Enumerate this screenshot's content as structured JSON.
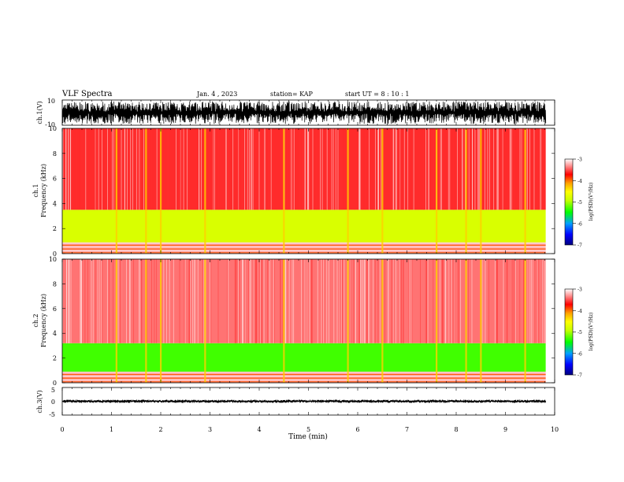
{
  "header": {
    "title": "VLF Spectra",
    "date": "Jan. 4 , 2023",
    "station": "station= KAP",
    "start": "start UT = 8 : 10 : 1"
  },
  "chart_data": [
    {
      "type": "line",
      "ylabel": "ch.1(V)",
      "ylim": [
        -10,
        10
      ],
      "yticks": [
        "10",
        "-10"
      ],
      "series": [
        {
          "envelope_min": -9,
          "envelope_max": 9
        }
      ]
    },
    {
      "type": "heatmap",
      "ylabel_top": "ch.1",
      "ylabel": "Frequency (kHz)",
      "ylim": [
        0,
        10
      ],
      "yticks": [
        "0",
        "2",
        "4",
        "6",
        "8",
        "10"
      ],
      "colorbar": {
        "label": "log(PSD)(V²/Hz)",
        "ticks": [
          "-3",
          "-4",
          "-5",
          "-6",
          "-7"
        ],
        "range": [
          -7,
          -3
        ]
      },
      "bands": [
        {
          "from_khz": 0.0,
          "to_khz": 0.9,
          "level": -3.3,
          "note": "striped low band"
        },
        {
          "from_khz": 0.9,
          "to_khz": 3.5,
          "level": -4.8
        },
        {
          "from_khz": 3.5,
          "to_khz": 10.0,
          "level": -3.6
        }
      ],
      "bursts_min": [
        1.1,
        1.7,
        2.0,
        2.9,
        4.5,
        5.8,
        6.5,
        7.6,
        8.2,
        8.5,
        9.4
      ]
    },
    {
      "type": "heatmap",
      "ylabel_top": "ch.2",
      "ylabel": "Frequency (kHz)",
      "ylim": [
        0,
        10
      ],
      "yticks": [
        "0",
        "2",
        "4",
        "6",
        "8",
        "10"
      ],
      "colorbar": {
        "label": "log(PSD)(V²/Hz)",
        "ticks": [
          "-3",
          "-4",
          "-5",
          "-6",
          "-7"
        ],
        "range": [
          -7,
          -3
        ]
      },
      "bands": [
        {
          "from_khz": 0.0,
          "to_khz": 0.9,
          "level": -3.3,
          "note": "striped low band"
        },
        {
          "from_khz": 0.9,
          "to_khz": 3.2,
          "level": -5.3
        },
        {
          "from_khz": 3.2,
          "to_khz": 10.0,
          "level": -3.4
        }
      ],
      "bursts_min": [
        1.1,
        1.7,
        2.0,
        2.9,
        4.5,
        5.8,
        6.5,
        7.6,
        8.2,
        8.5,
        9.4
      ]
    },
    {
      "type": "line",
      "ylabel": "ch.3(V)",
      "ylim": [
        -5,
        5
      ],
      "yticks": [
        "5",
        "0",
        "-5"
      ],
      "series": [
        {
          "envelope_min": -0.6,
          "envelope_max": 0.6
        }
      ]
    }
  ],
  "xaxis": {
    "label": "Time (min)",
    "xlim": [
      0,
      10
    ],
    "ticks": [
      "0",
      "1",
      "2",
      "3",
      "4",
      "5",
      "6",
      "7",
      "8",
      "9",
      "10"
    ],
    "data_end": 9.82
  }
}
